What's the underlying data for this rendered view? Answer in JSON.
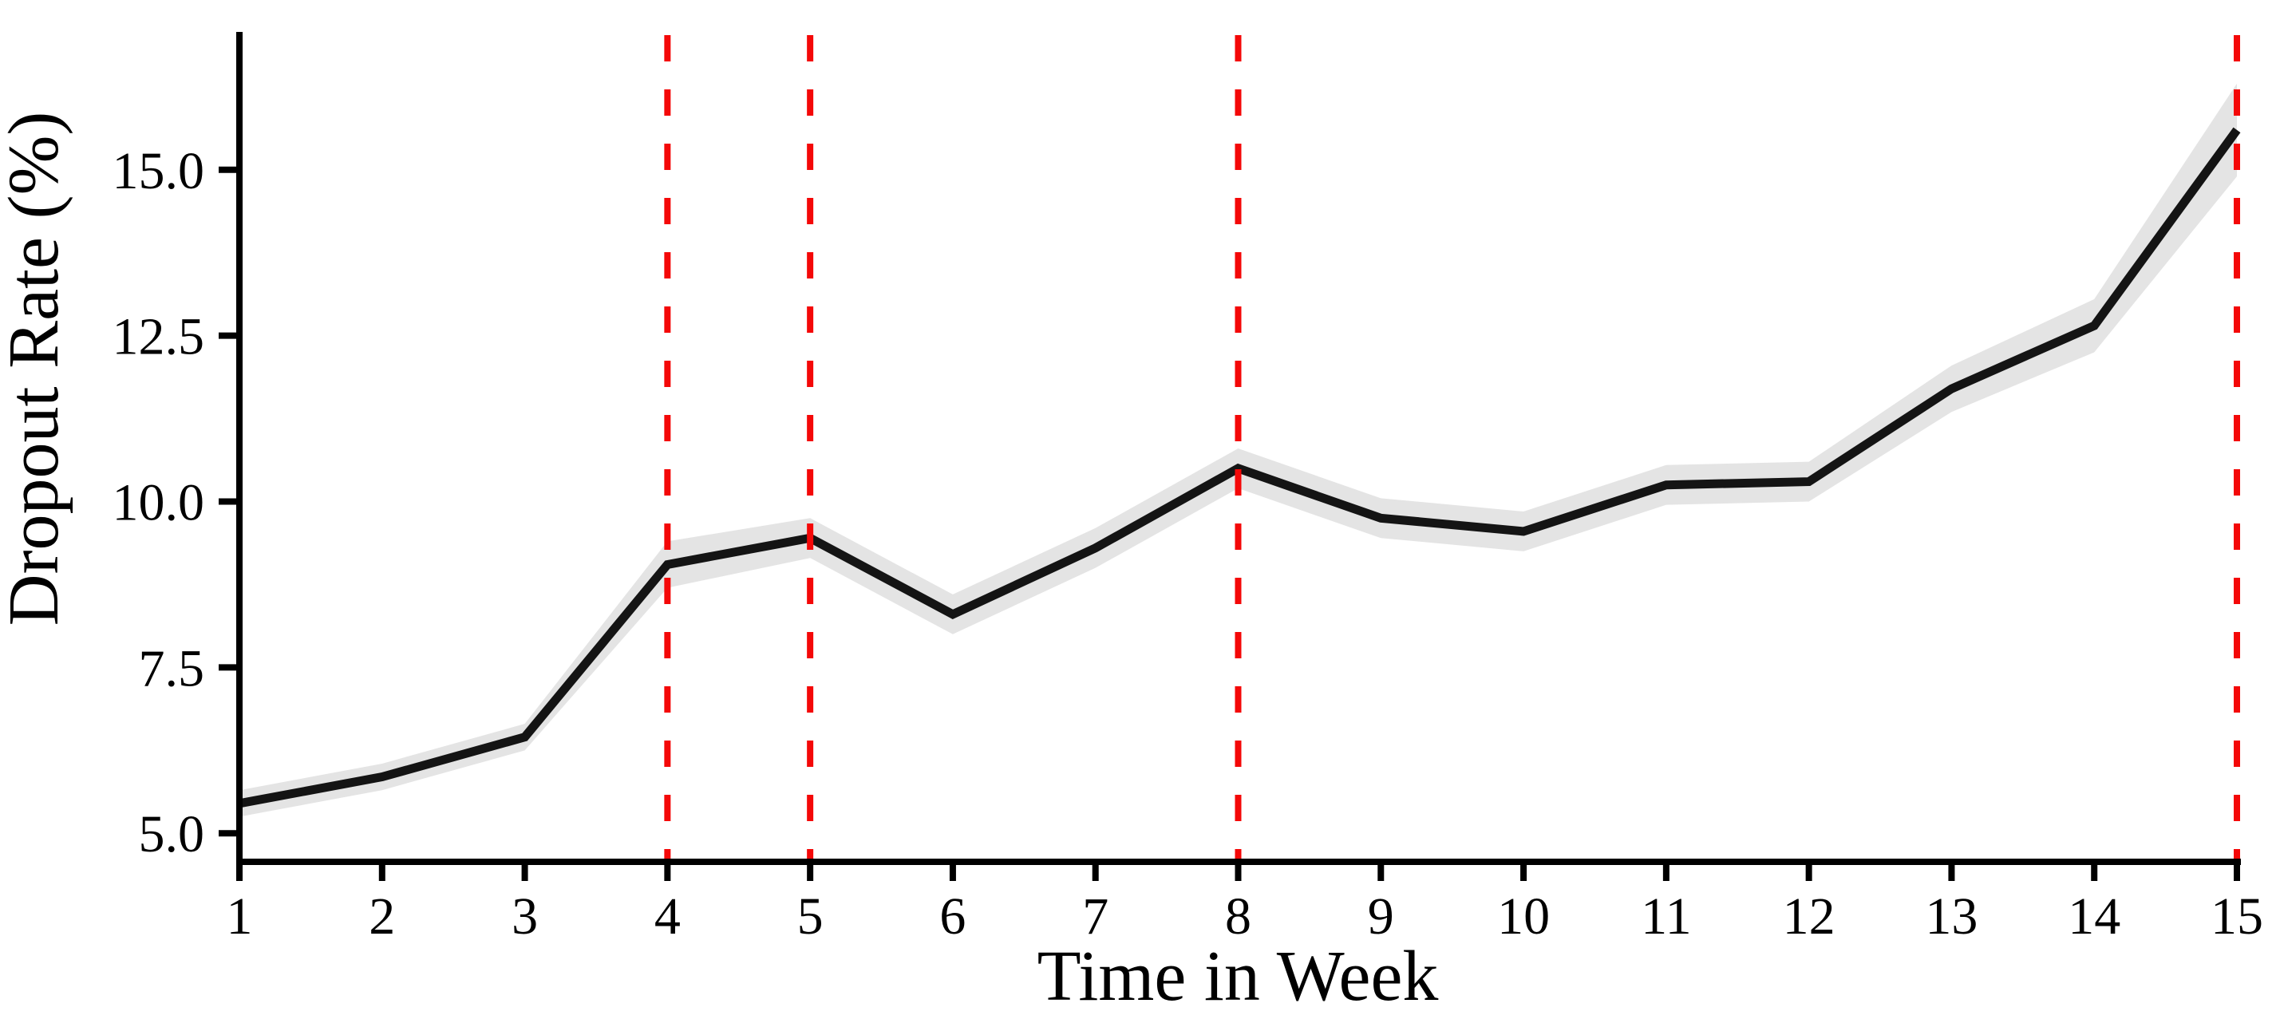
{
  "figure": {
    "background": "#ffffff"
  },
  "chart_data": {
    "type": "line",
    "title": "",
    "xlabel": "Time in Week",
    "ylabel": "Dropout Rate (%)",
    "x": [
      1,
      2,
      3,
      4,
      5,
      6,
      7,
      8,
      9,
      10,
      11,
      12,
      13,
      14,
      15
    ],
    "series": [
      {
        "name": "dropout-rate",
        "values": [
          5.45,
          5.85,
          6.45,
          9.05,
          9.45,
          8.3,
          9.3,
          10.5,
          9.75,
          9.55,
          10.25,
          10.3,
          11.7,
          12.65,
          15.6
        ],
        "color": "#141414",
        "line_width": 11
      }
    ],
    "confidence_band": {
      "upper": [
        5.65,
        6.05,
        6.65,
        9.4,
        9.75,
        8.6,
        9.6,
        10.8,
        10.05,
        9.85,
        10.55,
        10.6,
        12.05,
        13.05,
        16.3
      ],
      "lower": [
        5.25,
        5.65,
        6.25,
        8.7,
        9.15,
        8.0,
        9.0,
        10.2,
        9.45,
        9.25,
        9.95,
        10.0,
        11.35,
        12.25,
        14.9
      ],
      "color": "#e4e4e4"
    },
    "vlines": {
      "x": [
        4,
        5,
        8,
        15
      ],
      "color": "#f40808",
      "style": "dashed",
      "line_width": 8
    },
    "x_ticks": [
      "1",
      "2",
      "3",
      "4",
      "5",
      "6",
      "7",
      "8",
      "9",
      "10",
      "11",
      "12",
      "13",
      "14",
      "15"
    ],
    "y_ticks": [
      "5.0",
      "7.5",
      "10.0",
      "12.5",
      "15.0"
    ],
    "y_tick_values": [
      5.0,
      7.5,
      10.0,
      12.5,
      15.0
    ],
    "xlim": [
      1,
      15
    ],
    "ylim": [
      4.57,
      17.03
    ],
    "grid": false,
    "legend": "none",
    "axis_color": "#000000"
  }
}
